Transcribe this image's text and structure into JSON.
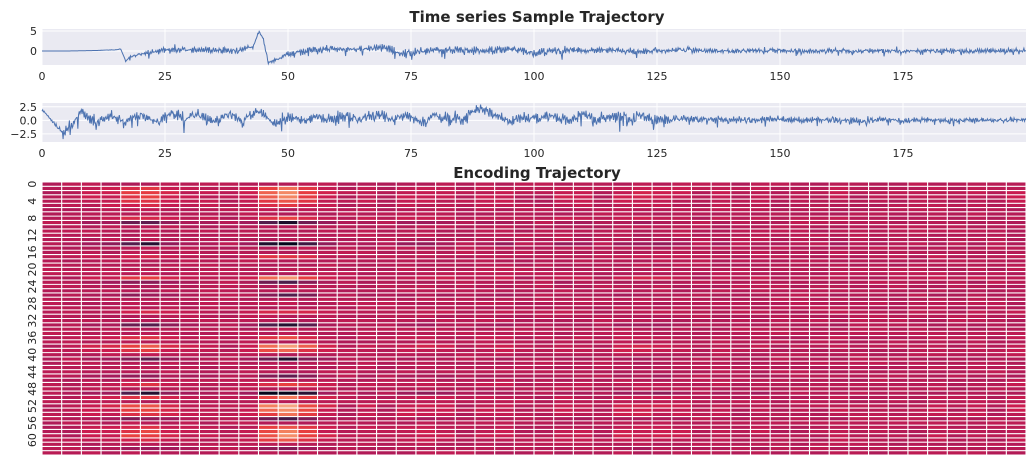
{
  "chart_data": [
    {
      "type": "line",
      "title": "Time series Sample Trajectory",
      "xlabel": "",
      "ylabel": "",
      "xlim": [
        0,
        200
      ],
      "ylim": [
        -3.5,
        5.5
      ],
      "x_ticks": [
        "0",
        "25",
        "50",
        "75",
        "100",
        "125",
        "150",
        "175"
      ],
      "x_tick_values": [
        0,
        25,
        50,
        75,
        100,
        125,
        150,
        175
      ],
      "y_ticks": [
        "5",
        "0"
      ],
      "y_tick_values": [
        5,
        0
      ],
      "grid": true,
      "background": "#EAEAF2",
      "line_color": "#4C72B0",
      "series": [
        {
          "x": [
            0,
            5,
            10,
            15,
            16,
            17,
            18,
            20,
            25,
            30,
            35,
            40,
            42,
            43,
            44,
            45,
            46,
            48,
            50,
            55,
            60,
            65,
            70,
            72,
            75,
            80,
            85,
            90,
            95,
            100,
            105,
            110,
            115,
            120,
            125,
            130,
            135,
            140,
            145,
            150,
            155,
            160,
            165,
            170,
            175,
            180,
            185,
            190,
            195,
            200
          ],
          "y": [
            0.0,
            0.0,
            0.1,
            0.3,
            0.5,
            -2.5,
            -1.5,
            -0.7,
            0.3,
            0.4,
            0.3,
            0.2,
            0.8,
            1.0,
            5.0,
            3.0,
            -3.0,
            -2.0,
            -0.8,
            0.3,
            0.6,
            0.4,
            0.9,
            -0.5,
            -0.2,
            0.2,
            0.3,
            0.2,
            0.4,
            -0.4,
            0.1,
            0.3,
            0.2,
            -0.2,
            0.1,
            0.3,
            0.1,
            0.0,
            0.2,
            0.1,
            0.0,
            0.1,
            0.0,
            0.1,
            0.0,
            0.1,
            0.0,
            0.0,
            0.1,
            0.0
          ],
          "amplitude": [
            0.0,
            0.0,
            0.0,
            0.1,
            0.1,
            0.1,
            0.5,
            0.8,
            1.0,
            1.1,
            1.1,
            1.0,
            0.9,
            0.8,
            0.5,
            0.5,
            0.5,
            0.8,
            1.2,
            1.3,
            1.3,
            1.2,
            1.4,
            1.8,
            1.6,
            1.4,
            1.3,
            1.3,
            1.2,
            1.5,
            1.2,
            1.1,
            1.0,
            1.0,
            0.9,
            0.9,
            0.8,
            0.8,
            0.8,
            0.8,
            0.9,
            0.8,
            0.8,
            0.8,
            0.8,
            0.8,
            0.9,
            0.8,
            0.8,
            0.8
          ]
        }
      ]
    },
    {
      "type": "line",
      "title": "",
      "xlabel": "",
      "ylabel": "",
      "xlim": [
        0,
        200
      ],
      "ylim": [
        -4,
        3.2
      ],
      "x_ticks": [
        "0",
        "25",
        "50",
        "75",
        "100",
        "125",
        "150",
        "175"
      ],
      "x_tick_values": [
        0,
        25,
        50,
        75,
        100,
        125,
        150,
        175
      ],
      "y_ticks": [
        "2.5",
        "0.0",
        "−2.5"
      ],
      "y_tick_values": [
        2.5,
        0,
        -2.5
      ],
      "grid": true,
      "background": "#EAEAF2",
      "line_color": "#4C72B0",
      "series": [
        {
          "x": [
            0,
            2,
            4,
            6,
            8,
            11,
            14,
            17,
            20,
            23,
            26,
            29,
            32,
            35,
            38,
            41,
            44,
            47,
            50,
            53,
            56,
            59,
            62,
            65,
            68,
            71,
            74,
            77,
            80,
            83,
            86,
            89,
            92,
            95,
            98,
            101,
            104,
            107,
            110,
            113,
            116,
            119,
            122,
            125,
            130,
            135,
            140,
            145,
            150,
            155,
            160,
            165,
            170,
            175,
            180,
            185,
            190,
            195,
            200
          ],
          "y": [
            2.0,
            0.0,
            -2.2,
            -1.0,
            1.5,
            -0.5,
            1.0,
            -0.4,
            1.2,
            -0.3,
            1.5,
            0.0,
            1.3,
            -0.2,
            1.0,
            0.2,
            1.8,
            -0.5,
            0.6,
            0.0,
            0.8,
            0.2,
            0.9,
            0.1,
            1.4,
            0.0,
            1.0,
            -0.3,
            1.0,
            0.0,
            0.5,
            2.3,
            1.0,
            -0.2,
            0.6,
            0.3,
            1.0,
            -0.2,
            1.2,
            0.0,
            0.8,
            0.2,
            0.9,
            0.0,
            0.4,
            0.1,
            0.2,
            0.0,
            0.2,
            0.0,
            0.1,
            0.0,
            0.1,
            0.0,
            0.1,
            0.0,
            0.0,
            0.0,
            0.0
          ],
          "amplitude": [
            0.2,
            0.3,
            0.8,
            1.0,
            1.1,
            1.2,
            1.2,
            1.3,
            1.3,
            1.3,
            1.3,
            1.3,
            1.3,
            1.3,
            1.3,
            1.3,
            1.4,
            1.4,
            1.3,
            1.3,
            1.3,
            1.3,
            1.3,
            1.3,
            1.3,
            1.3,
            1.3,
            1.3,
            1.3,
            1.3,
            1.3,
            1.3,
            1.5,
            1.5,
            1.5,
            1.4,
            1.4,
            1.4,
            1.4,
            1.4,
            1.4,
            1.4,
            1.3,
            1.3,
            1.1,
            1.0,
            1.0,
            0.9,
            0.9,
            0.8,
            0.8,
            0.8,
            0.7,
            0.7,
            0.6,
            0.6,
            0.6,
            0.6,
            0.6
          ]
        }
      ]
    },
    {
      "type": "heatmap",
      "title": "Encoding Trajectory",
      "xlabel": "",
      "ylabel": "",
      "rows": 64,
      "columns": 50,
      "y_ticks": [
        "0",
        "4",
        "8",
        "12",
        "16",
        "20",
        "24",
        "28",
        "32",
        "36",
        "40",
        "44",
        "48",
        "52",
        "56",
        "60"
      ],
      "y_tick_values": [
        0,
        4,
        8,
        12,
        16,
        20,
        24,
        28,
        32,
        36,
        40,
        44,
        48,
        52,
        56,
        60
      ],
      "grid_line_color": "#FFFFFF",
      "colormap": [
        "#03051A",
        "#4C1D4B",
        "#A11A5B",
        "#CB1B4F",
        "#E83F3F",
        "#F3825F",
        "#F6B48F",
        "#FAEBDD"
      ],
      "base_level": 0.36,
      "column_profile": [
        {
          "column": 2,
          "strength": 0.1
        },
        {
          "column": 3,
          "strength": 0.14
        },
        {
          "column": 4,
          "strength": 0.34
        },
        {
          "column": 5,
          "strength": 0.4
        },
        {
          "column": 6,
          "strength": 0.18
        },
        {
          "column": 7,
          "strength": 0.08
        },
        {
          "column": 8,
          "strength": 0.06
        },
        {
          "column": 10,
          "strength": 0.1
        },
        {
          "column": 11,
          "strength": 0.5
        },
        {
          "column": 12,
          "strength": 0.7
        },
        {
          "column": 13,
          "strength": 0.4
        },
        {
          "column": 14,
          "strength": 0.14
        },
        {
          "column": 16,
          "strength": 0.08
        },
        {
          "column": 18,
          "strength": 0.1
        },
        {
          "column": 19,
          "strength": 0.12
        },
        {
          "column": 20,
          "strength": 0.1
        },
        {
          "column": 22,
          "strength": 0.08
        },
        {
          "column": 23,
          "strength": 0.1
        },
        {
          "column": 26,
          "strength": 0.1
        },
        {
          "column": 27,
          "strength": 0.08
        },
        {
          "column": 29,
          "strength": 0.12
        },
        {
          "column": 30,
          "strength": 0.14
        },
        {
          "column": 31,
          "strength": 0.12
        },
        {
          "column": 32,
          "strength": 0.08
        },
        {
          "column": 34,
          "strength": 0.06
        },
        {
          "column": 36,
          "strength": 0.06
        },
        {
          "column": 40,
          "strength": 0.06
        },
        {
          "column": 45,
          "strength": 0.06
        },
        {
          "column": 47,
          "strength": 0.06
        },
        {
          "column": 49,
          "strength": 0.08
        }
      ],
      "row_profile": [
        {
          "row": 1,
          "strength": 0.8
        },
        {
          "row": 2,
          "strength": 1.0
        },
        {
          "row": 3,
          "strength": 1.0
        },
        {
          "row": 4,
          "strength": 0.7
        },
        {
          "row": 5,
          "strength": 0.5
        },
        {
          "row": 8,
          "strength": 0.6
        },
        {
          "row": 9,
          "strength": -0.8
        },
        {
          "row": 14,
          "strength": -1.2
        },
        {
          "row": 17,
          "strength": 0.5
        },
        {
          "row": 22,
          "strength": 1.0
        },
        {
          "row": 23,
          "strength": -0.6
        },
        {
          "row": 26,
          "strength": -0.5
        },
        {
          "row": 30,
          "strength": 0.4
        },
        {
          "row": 33,
          "strength": -0.8
        },
        {
          "row": 36,
          "strength": 0.6
        },
        {
          "row": 38,
          "strength": 1.2
        },
        {
          "row": 39,
          "strength": 0.8
        },
        {
          "row": 41,
          "strength": -0.7
        },
        {
          "row": 45,
          "strength": -0.5
        },
        {
          "row": 47,
          "strength": 0.6
        },
        {
          "row": 49,
          "strength": -1.3
        },
        {
          "row": 50,
          "strength": 0.9
        },
        {
          "row": 52,
          "strength": 1.2
        },
        {
          "row": 53,
          "strength": 1.0
        },
        {
          "row": 54,
          "strength": 0.8
        },
        {
          "row": 55,
          "strength": -0.6
        },
        {
          "row": 57,
          "strength": 0.7
        },
        {
          "row": 58,
          "strength": 0.9
        },
        {
          "row": 59,
          "strength": 1.0
        },
        {
          "row": 60,
          "strength": 0.6
        },
        {
          "row": 62,
          "strength": -0.4
        }
      ]
    }
  ]
}
